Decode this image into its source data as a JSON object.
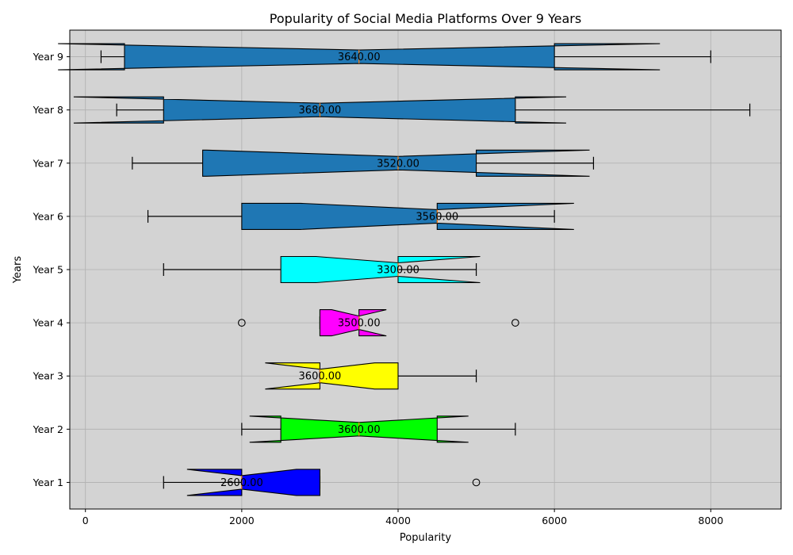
{
  "chart_data": {
    "type": "box",
    "orientation": "horizontal",
    "notched": true,
    "title": "Popularity of Social Media Platforms Over 9 Years",
    "xlabel": "Popularity",
    "ylabel": "Years",
    "xlim": [
      -200,
      8900
    ],
    "xticks": [
      0,
      2000,
      4000,
      6000,
      8000
    ],
    "grid": true,
    "background_color": "#d3d3d3",
    "categories": [
      "Year 1",
      "Year 2",
      "Year 3",
      "Year 4",
      "Year 5",
      "Year 6",
      "Year 7",
      "Year 8",
      "Year 9"
    ],
    "boxes": [
      {
        "label": "Year 1",
        "whisker_low": 1000,
        "q1": 2000,
        "median": 2000,
        "q3": 3000,
        "whisker_high": 3000,
        "notch_low": 1300,
        "notch_high": 2700,
        "outliers": [
          5000
        ],
        "color": "#0000ff",
        "mean_label": "2600.00"
      },
      {
        "label": "Year 2",
        "whisker_low": 2000,
        "q1": 2500,
        "median": 3500,
        "q3": 4500,
        "whisker_high": 5500,
        "notch_low": 2100,
        "notch_high": 4900,
        "outliers": [],
        "color": "#00ff00",
        "mean_label": "3600.00"
      },
      {
        "label": "Year 3",
        "whisker_low": 3000,
        "q1": 3000,
        "median": 3000,
        "q3": 4000,
        "whisker_high": 5000,
        "notch_low": 2300,
        "notch_high": 3700,
        "outliers": [],
        "color": "#ffff00",
        "mean_label": "3600.00"
      },
      {
        "label": "Year 4",
        "whisker_low": 3000,
        "q1": 3000,
        "median": 3500,
        "q3": 3500,
        "whisker_high": 3500,
        "notch_low": 3150,
        "notch_high": 3850,
        "outliers": [
          2000,
          5500
        ],
        "color": "#ff00ff",
        "mean_label": "3500.00"
      },
      {
        "label": "Year 5",
        "whisker_low": 1000,
        "q1": 2500,
        "median": 4000,
        "q3": 4000,
        "whisker_high": 5000,
        "notch_low": 2950,
        "notch_high": 5050,
        "outliers": [],
        "color": "#00ffff",
        "mean_label": "3300.00"
      },
      {
        "label": "Year 6",
        "whisker_low": 800,
        "q1": 2000,
        "median": 4500,
        "q3": 4500,
        "whisker_high": 6000,
        "notch_low": 2750,
        "notch_high": 6250,
        "outliers": [],
        "color": "#1f77b4",
        "mean_label": "3560.00"
      },
      {
        "label": "Year 7",
        "whisker_low": 600,
        "q1": 1500,
        "median": 4000,
        "q3": 5000,
        "whisker_high": 6500,
        "notch_low": 1550,
        "notch_high": 6450,
        "outliers": [],
        "color": "#1f77b4",
        "mean_label": "3520.00"
      },
      {
        "label": "Year 8",
        "whisker_low": 400,
        "q1": 1000,
        "median": 3000,
        "q3": 5500,
        "whisker_high": 8500,
        "notch_low": -150,
        "notch_high": 6150,
        "outliers": [],
        "color": "#1f77b4",
        "mean_label": "3680.00"
      },
      {
        "label": "Year 9",
        "whisker_low": 200,
        "q1": 500,
        "median": 3500,
        "q3": 6000,
        "whisker_high": 8000,
        "notch_low": -350,
        "notch_high": 7350,
        "outliers": [],
        "color": "#1f77b4",
        "mean_label": "3640.00"
      }
    ]
  }
}
